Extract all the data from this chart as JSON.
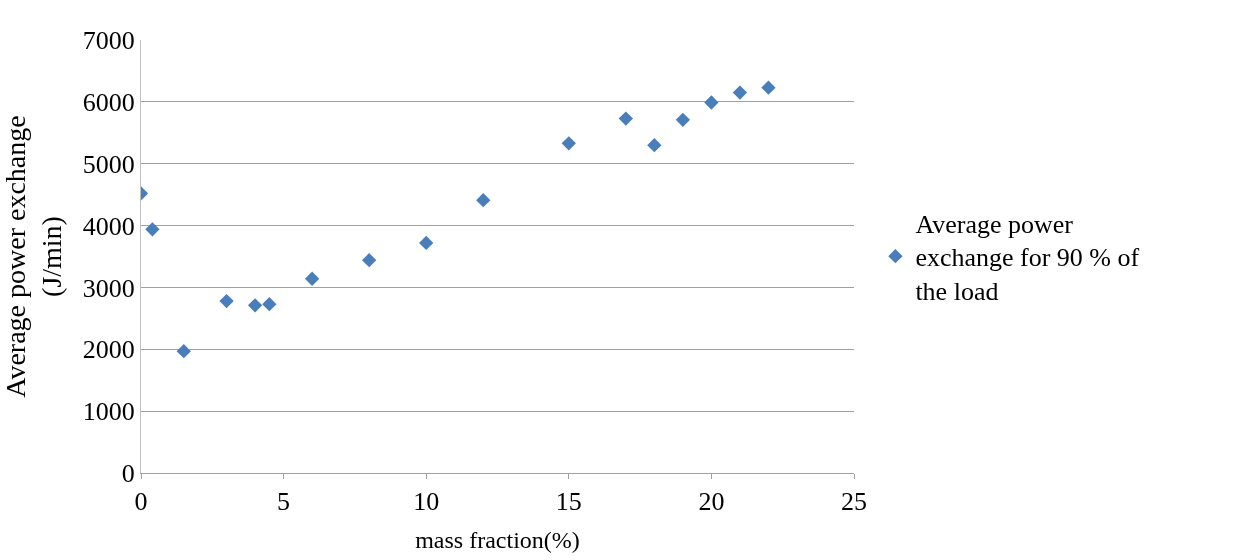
{
  "chart_data": {
    "type": "scatter",
    "xlabel": "mass fraction(%)",
    "ylabel": "Average power exchange (J/min)",
    "x": [
      0,
      0.4,
      1.5,
      3,
      4,
      4.5,
      6,
      8,
      10,
      12,
      15,
      17,
      18,
      19,
      20,
      21,
      22
    ],
    "series": [
      {
        "name": "Average power exchange for 90 % of the load",
        "color": "#4a7ebb",
        "values": [
          4520,
          3940,
          1970,
          2780,
          2710,
          2730,
          3140,
          3440,
          3720,
          4410,
          5330,
          5730,
          5300,
          5710,
          5990,
          6150,
          6230
        ]
      }
    ],
    "xlim": [
      0,
      25
    ],
    "xticks": [
      0,
      5,
      10,
      15,
      20,
      25
    ],
    "ylim": [
      0,
      7000
    ],
    "yticks": [
      0,
      1000,
      2000,
      3000,
      4000,
      5000,
      6000,
      7000
    ],
    "grid": "y",
    "legend": "right",
    "marker": "diamond"
  }
}
